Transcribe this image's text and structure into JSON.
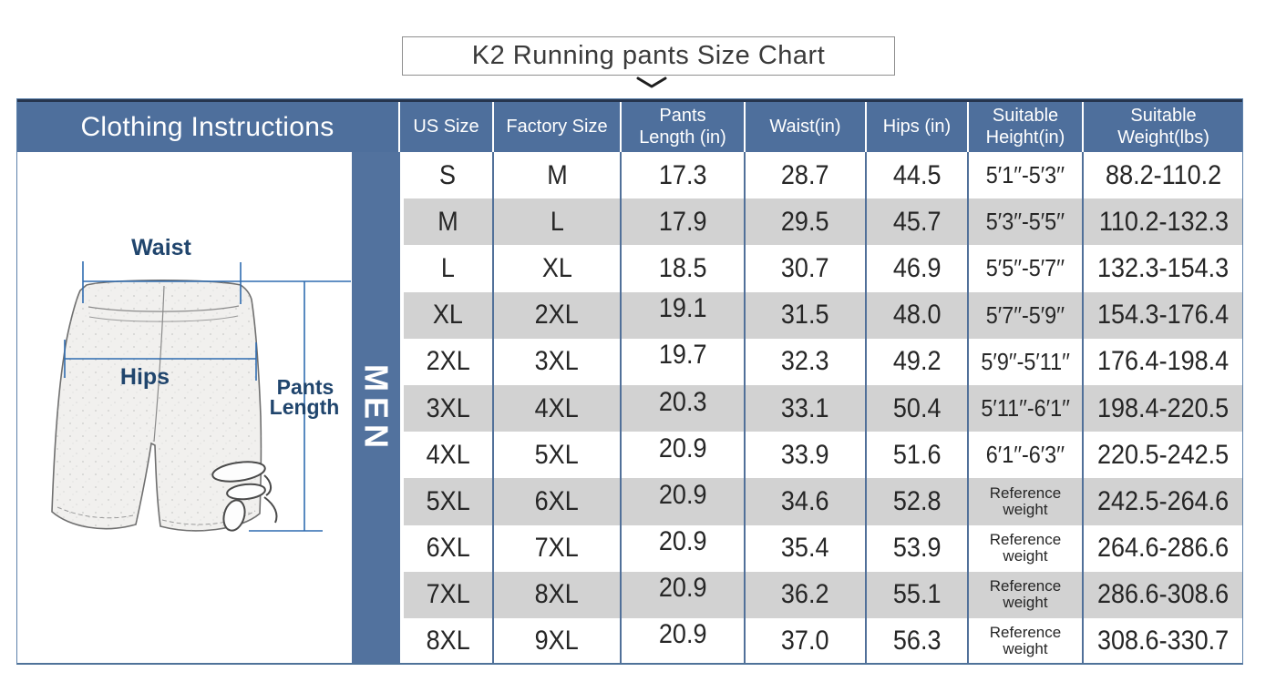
{
  "title": "K2 Running pants Size Chart",
  "header": {
    "instructions_label": "Clothing Instructions"
  },
  "illustration": {
    "gender_label": "MEN",
    "labels": {
      "waist": "Waist",
      "hips": "Hips",
      "pants_line1": "Pants",
      "pants_line2": "Length"
    }
  },
  "table": {
    "columns": [
      "US Size",
      "Factory Size",
      "Pants Length (in)",
      "Waist(in)",
      "Hips (in)",
      "Suitable Height(in)",
      "Suitable Weight(lbs)"
    ],
    "reference_label": "Reference weight",
    "rows": [
      [
        "S",
        "M",
        "17.3",
        "28.7",
        "44.5",
        "5′1′′-5′3′′",
        "88.2-110.2"
      ],
      [
        "M",
        "L",
        "17.9",
        "29.5",
        "45.7",
        "5′3′′-5′5′′",
        "110.2-132.3"
      ],
      [
        "L",
        "XL",
        "18.5",
        "30.7",
        "46.9",
        "5′5′′-5′7′′",
        "132.3-154.3"
      ],
      [
        "XL",
        "2XL",
        "19.1",
        "31.5",
        "48.0",
        "5′7′′-5′9′′",
        "154.3-176.4"
      ],
      [
        "2XL",
        "3XL",
        "19.7",
        "32.3",
        "49.2",
        "5′9′′-5′11′′",
        "176.4-198.4"
      ],
      [
        "3XL",
        "4XL",
        "20.3",
        "33.1",
        "50.4",
        "5′11′′-6′1′′",
        "198.4-220.5"
      ],
      [
        "4XL",
        "5XL",
        "20.9",
        "33.9",
        "51.6",
        "6′1′′-6′3′′",
        "220.5-242.5"
      ],
      [
        "5XL",
        "6XL",
        "20.9",
        "34.6",
        "52.8",
        "Reference weight",
        "242.5-264.6"
      ],
      [
        "6XL",
        "7XL",
        "20.9",
        "35.4",
        "53.9",
        "Reference weight",
        "264.6-286.6"
      ],
      [
        "7XL",
        "8XL",
        "20.9",
        "36.2",
        "55.1",
        "Reference weight",
        "286.6-308.6"
      ],
      [
        "8XL",
        "9XL",
        "20.9",
        "37.0",
        "56.3",
        "Reference weight",
        "308.6-330.7"
      ]
    ]
  },
  "colors": {
    "header_bg": "#4e6f9c",
    "men_strip_bg": "#52729e",
    "stripe_gray": "#d2d2d2",
    "grid_line": "#517099",
    "measure_line": "#2f6cb0",
    "label_navy": "#20456d"
  }
}
